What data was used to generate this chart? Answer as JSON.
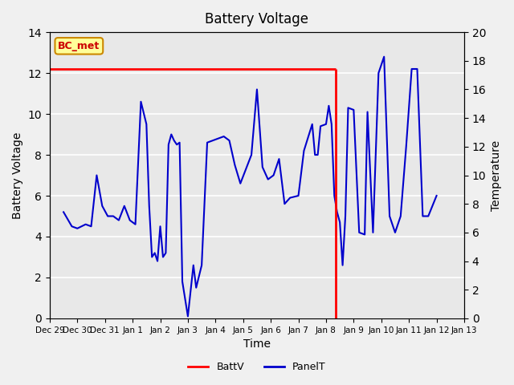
{
  "title": "Battery Voltage",
  "xlabel": "Time",
  "ylabel_left": "Battery Voltage",
  "ylabel_right": "Temperature",
  "xlim_days": [
    -0.5,
    14.5
  ],
  "ylim_left": [
    0,
    14
  ],
  "ylim_right": [
    0,
    20
  ],
  "battv_value": 12.2,
  "battv_color": "#ff0000",
  "panelt_color": "#0000cc",
  "background_color": "#e8e8e8",
  "grid_color": "#ffffff",
  "annotation_label": "BC_met",
  "annotation_color": "#ffff99",
  "annotation_border": "#cc8800",
  "annotation_text_color": "#cc0000",
  "x_tick_labels": [
    "Dec 29",
    "Dec 30",
    "Dec 31",
    "Jan 1",
    "Jan 2",
    "Jan 3",
    "Jan 4",
    "Jan 5",
    "Jan 6",
    "Jan 7",
    "Jan 8",
    "Jan 9",
    "Jan 10",
    "Jan 11",
    "Jan 12",
    "Jan 13"
  ],
  "panelt_x": [
    0,
    0.3,
    0.5,
    0.8,
    1.0,
    1.2,
    1.4,
    1.6,
    1.8,
    2.0,
    2.2,
    2.4,
    2.6,
    2.8,
    3.0,
    3.1,
    3.2,
    3.3,
    3.4,
    3.5,
    3.6,
    3.7,
    3.8,
    3.9,
    4.0,
    4.1,
    4.2,
    4.3,
    4.5,
    4.7,
    4.8,
    5.0,
    5.2,
    5.4,
    5.6,
    5.8,
    6.0,
    6.2,
    6.4,
    6.6,
    6.8,
    7.0,
    7.2,
    7.4,
    7.6,
    7.8,
    8.0,
    8.2,
    8.5,
    8.7,
    9.0,
    9.1,
    9.2,
    9.3,
    9.5,
    9.6,
    9.7,
    9.8,
    9.9,
    10.0,
    10.1,
    10.2,
    10.3,
    10.5,
    10.7,
    10.9,
    11.0,
    11.2,
    11.4,
    11.6,
    11.8,
    12.0,
    12.2,
    12.4,
    12.6,
    12.8,
    13.0,
    13.2,
    13.5
  ],
  "panelt_y": [
    5.2,
    4.5,
    4.4,
    4.6,
    4.5,
    7.0,
    5.5,
    5.0,
    5.0,
    4.8,
    5.5,
    4.8,
    4.6,
    10.6,
    9.5,
    5.5,
    3.0,
    3.2,
    2.8,
    4.5,
    3.0,
    3.2,
    8.5,
    9.0,
    8.7,
    8.5,
    8.6,
    1.8,
    0.1,
    2.6,
    1.5,
    2.6,
    8.6,
    8.7,
    8.8,
    8.9,
    8.7,
    7.5,
    6.6,
    7.3,
    8.0,
    11.2,
    7.4,
    6.8,
    7.0,
    7.8,
    5.6,
    5.9,
    6.0,
    8.2,
    9.5,
    8.0,
    8.0,
    9.4,
    9.5,
    10.4,
    9.5,
    6.0,
    5.2,
    4.7,
    2.6,
    5.0,
    10.3,
    10.2,
    4.2,
    4.1,
    10.1,
    4.2,
    12.0,
    12.8,
    5.0,
    4.2,
    5.0,
    8.4,
    12.2,
    12.2,
    5.0,
    5.0,
    6.0
  ],
  "battv_vline_x": 9.85,
  "legend_items": [
    "BattV",
    "PanelT"
  ]
}
